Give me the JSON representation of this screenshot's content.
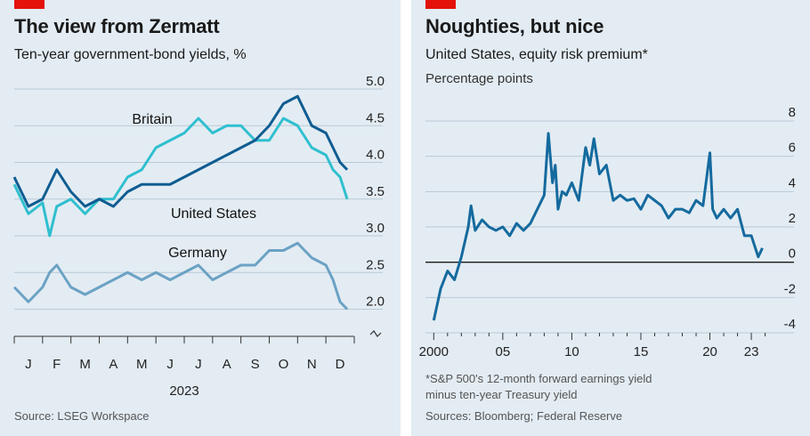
{
  "left": {
    "title": "The view from Zermatt",
    "subtitle": "Ten-year government-bond yields, %",
    "source": "Source: LSEG Workspace",
    "colors": {
      "britain": "#2fbfcf",
      "united_states": "#0e5c91",
      "germany": "#6ba2c4",
      "grid": "#b9c9d6"
    }
  },
  "right": {
    "title": "Noughties, but nice",
    "subtitle": "United States, equity risk premium*",
    "unit": "Percentage points",
    "footnote_1": "*S&P 500's 12-month forward earnings yield",
    "footnote_2": "minus ten-year Treasury yield",
    "source": "Sources: Bloomberg; Federal Reserve",
    "colors": {
      "line": "#156a9e",
      "zero": "#1a1a1a",
      "grid": "#b9c9d6"
    }
  },
  "chart_data": [
    {
      "type": "line",
      "title": "The view from Zermatt",
      "subtitle": "Ten-year government-bond yields, %",
      "xlabel": "2023",
      "categories": [
        "J",
        "F",
        "M",
        "A",
        "M",
        "J",
        "J",
        "A",
        "S",
        "O",
        "N",
        "D"
      ],
      "x_range": [
        0,
        12
      ],
      "ylim": [
        1.8,
        5.0
      ],
      "yticks": [
        2.0,
        2.5,
        3.0,
        3.5,
        4.0,
        4.5,
        5.0
      ],
      "broken_axis": true,
      "grid": true,
      "x": [
        0,
        0.5,
        1,
        1.25,
        1.5,
        2,
        2.5,
        3,
        3.5,
        4,
        4.5,
        5,
        5.5,
        6,
        6.5,
        7,
        7.5,
        8,
        8.5,
        9,
        9.5,
        10,
        10.5,
        11,
        11.25,
        11.5,
        11.75
      ],
      "series": [
        {
          "name": "Britain",
          "values": [
            3.7,
            3.3,
            3.45,
            3.0,
            3.4,
            3.5,
            3.3,
            3.5,
            3.5,
            3.8,
            3.9,
            4.2,
            4.3,
            4.4,
            4.6,
            4.4,
            4.5,
            4.5,
            4.3,
            4.3,
            4.6,
            4.5,
            4.2,
            4.1,
            3.9,
            3.8,
            3.5
          ]
        },
        {
          "name": "United States",
          "values": [
            3.8,
            3.4,
            3.5,
            3.7,
            3.9,
            3.6,
            3.4,
            3.5,
            3.4,
            3.6,
            3.7,
            3.7,
            3.7,
            3.8,
            3.9,
            4.0,
            4.1,
            4.2,
            4.3,
            4.5,
            4.8,
            4.9,
            4.5,
            4.4,
            4.2,
            4.0,
            3.9
          ]
        },
        {
          "name": "Germany",
          "values": [
            2.3,
            2.1,
            2.3,
            2.5,
            2.6,
            2.3,
            2.2,
            2.3,
            2.4,
            2.5,
            2.4,
            2.5,
            2.4,
            2.5,
            2.6,
            2.4,
            2.5,
            2.6,
            2.6,
            2.8,
            2.8,
            2.9,
            2.7,
            2.6,
            2.4,
            2.1,
            2.0
          ]
        }
      ]
    },
    {
      "type": "line",
      "title": "Noughties, but nice",
      "subtitle": "United States, equity risk premium*",
      "ylabel": "Percentage points",
      "xticks": [
        2000,
        2005,
        2010,
        2015,
        2020,
        2023
      ],
      "xtick_labels": [
        "2000",
        "05",
        "10",
        "15",
        "20",
        "23"
      ],
      "x_range": [
        1999.4,
        2024.8
      ],
      "ylim": [
        -4,
        8
      ],
      "yticks": [
        -4,
        -2,
        0,
        2,
        4,
        6,
        8
      ],
      "grid": true,
      "series": [
        {
          "x": [
            2000,
            2000.5,
            2001,
            2001.5,
            2002,
            2002.5,
            2002.7,
            2003,
            2003.5,
            2004,
            2004.5,
            2005,
            2005.5,
            2006,
            2006.5,
            2007,
            2007.5,
            2008,
            2008.3,
            2008.6,
            2008.8,
            2009,
            2009.3,
            2009.6,
            2010,
            2010.5,
            2011,
            2011.3,
            2011.6,
            2012,
            2012.5,
            2013,
            2013.5,
            2014,
            2014.5,
            2015,
            2015.5,
            2016,
            2016.5,
            2017,
            2017.5,
            2018,
            2018.5,
            2019,
            2019.5,
            2020,
            2020.2,
            2020.5,
            2021,
            2021.5,
            2022,
            2022.5,
            2023,
            2023.5,
            2023.8
          ],
          "values": [
            -3.3,
            -1.5,
            -0.5,
            -1.0,
            0.3,
            2.0,
            3.2,
            1.8,
            2.4,
            2.0,
            1.8,
            2.0,
            1.5,
            2.2,
            1.8,
            2.2,
            3.0,
            3.8,
            7.3,
            4.5,
            5.5,
            3.0,
            4.0,
            3.8,
            4.5,
            3.5,
            6.5,
            5.5,
            7.0,
            5.0,
            5.5,
            3.5,
            3.8,
            3.5,
            3.6,
            3.0,
            3.8,
            3.5,
            3.2,
            2.5,
            3.0,
            3.0,
            2.8,
            3.5,
            3.2,
            6.2,
            3.0,
            2.5,
            3.0,
            2.5,
            3.0,
            1.5,
            1.5,
            0.3,
            0.8
          ]
        }
      ]
    }
  ]
}
